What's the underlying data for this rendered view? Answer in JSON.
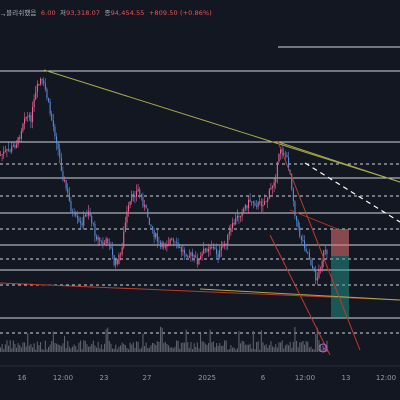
{
  "ohlc_legend": {
    "symbol_fragment": "ᆨ블리쉬했음",
    "open": "6.00",
    "low_label": "저",
    "low": "93,318.07",
    "close_label": "종",
    "close": "94,454.55",
    "change": "+809.50 (+0.86%)"
  },
  "time_axis": {
    "ticks": [
      "16",
      "12:00",
      "23",
      "27",
      "2025",
      "6",
      "12:00",
      "13",
      "12:00"
    ]
  },
  "colors": {
    "background": "#131722",
    "candle_up": "#f06292",
    "candle_down": "#5c8bd6",
    "horizontal_level": "#d1d4dc",
    "trendline_upper": "#a6a84a",
    "trendline_lower": "#c0392b",
    "projection_dashed": "#ffffff",
    "short_risk_box": "#e57373",
    "short_target_box": "#26a69a"
  },
  "icons": {
    "alert": "clock-icon"
  }
}
